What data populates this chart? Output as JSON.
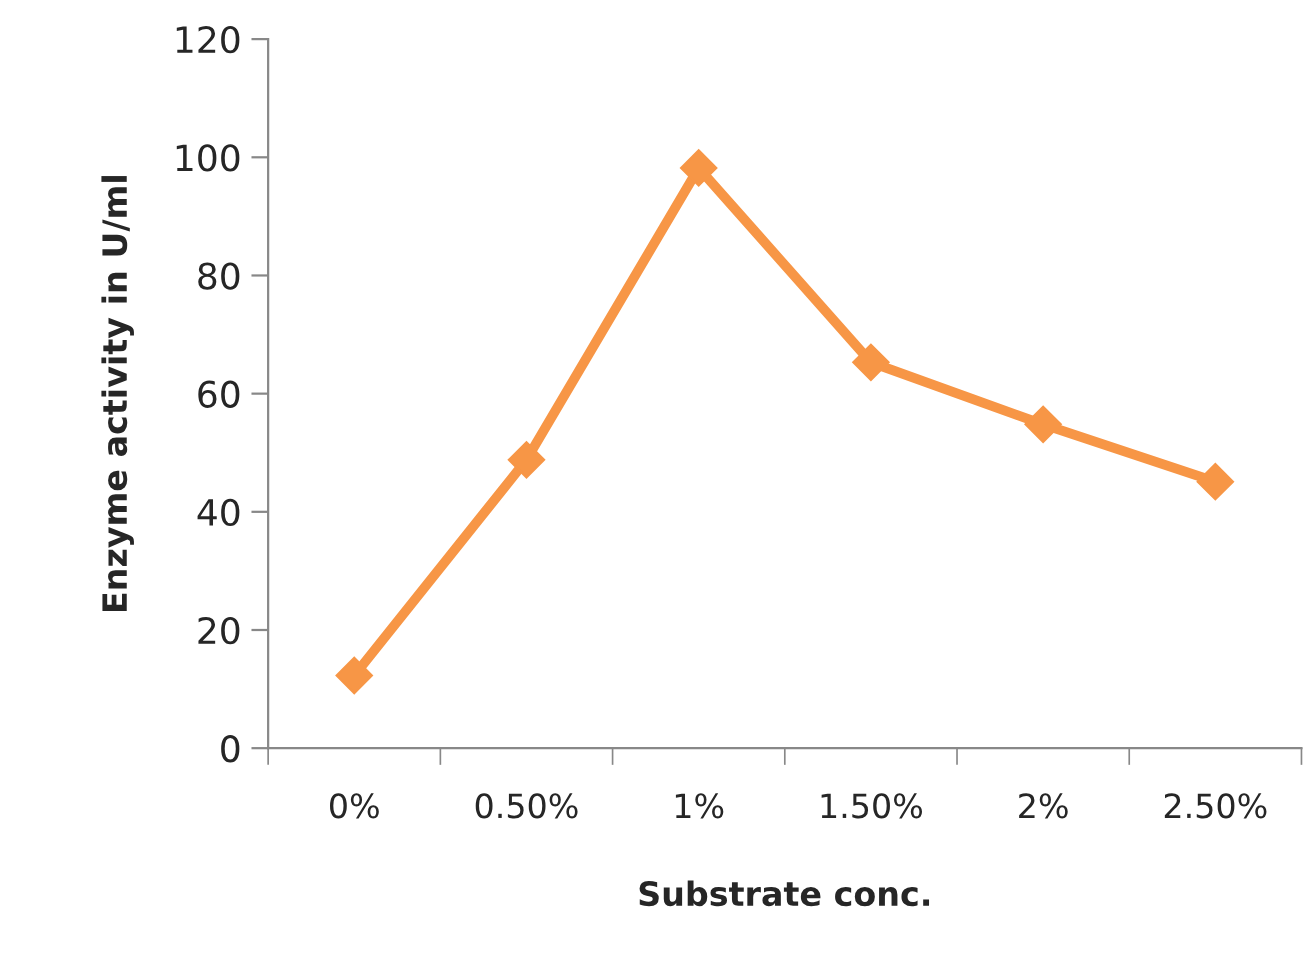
{
  "chart_data": {
    "type": "line",
    "xlabel": "Substrate conc.",
    "ylabel": "Enzyme activity in U/ml",
    "categories": [
      "0%",
      "0.50%",
      "1%",
      "1.50%",
      "2%",
      "2.50%"
    ],
    "series": [
      {
        "color": "#f79646",
        "values": [
          12.3,
          48.8,
          98.2,
          65.3,
          54.8,
          45.1
        ]
      }
    ],
    "ylim": [
      0,
      120
    ],
    "yticks": [
      0,
      20,
      40,
      60,
      80,
      100,
      120
    ],
    "grid": false,
    "legend": false,
    "marker": "diamond",
    "line_style": "solid"
  }
}
